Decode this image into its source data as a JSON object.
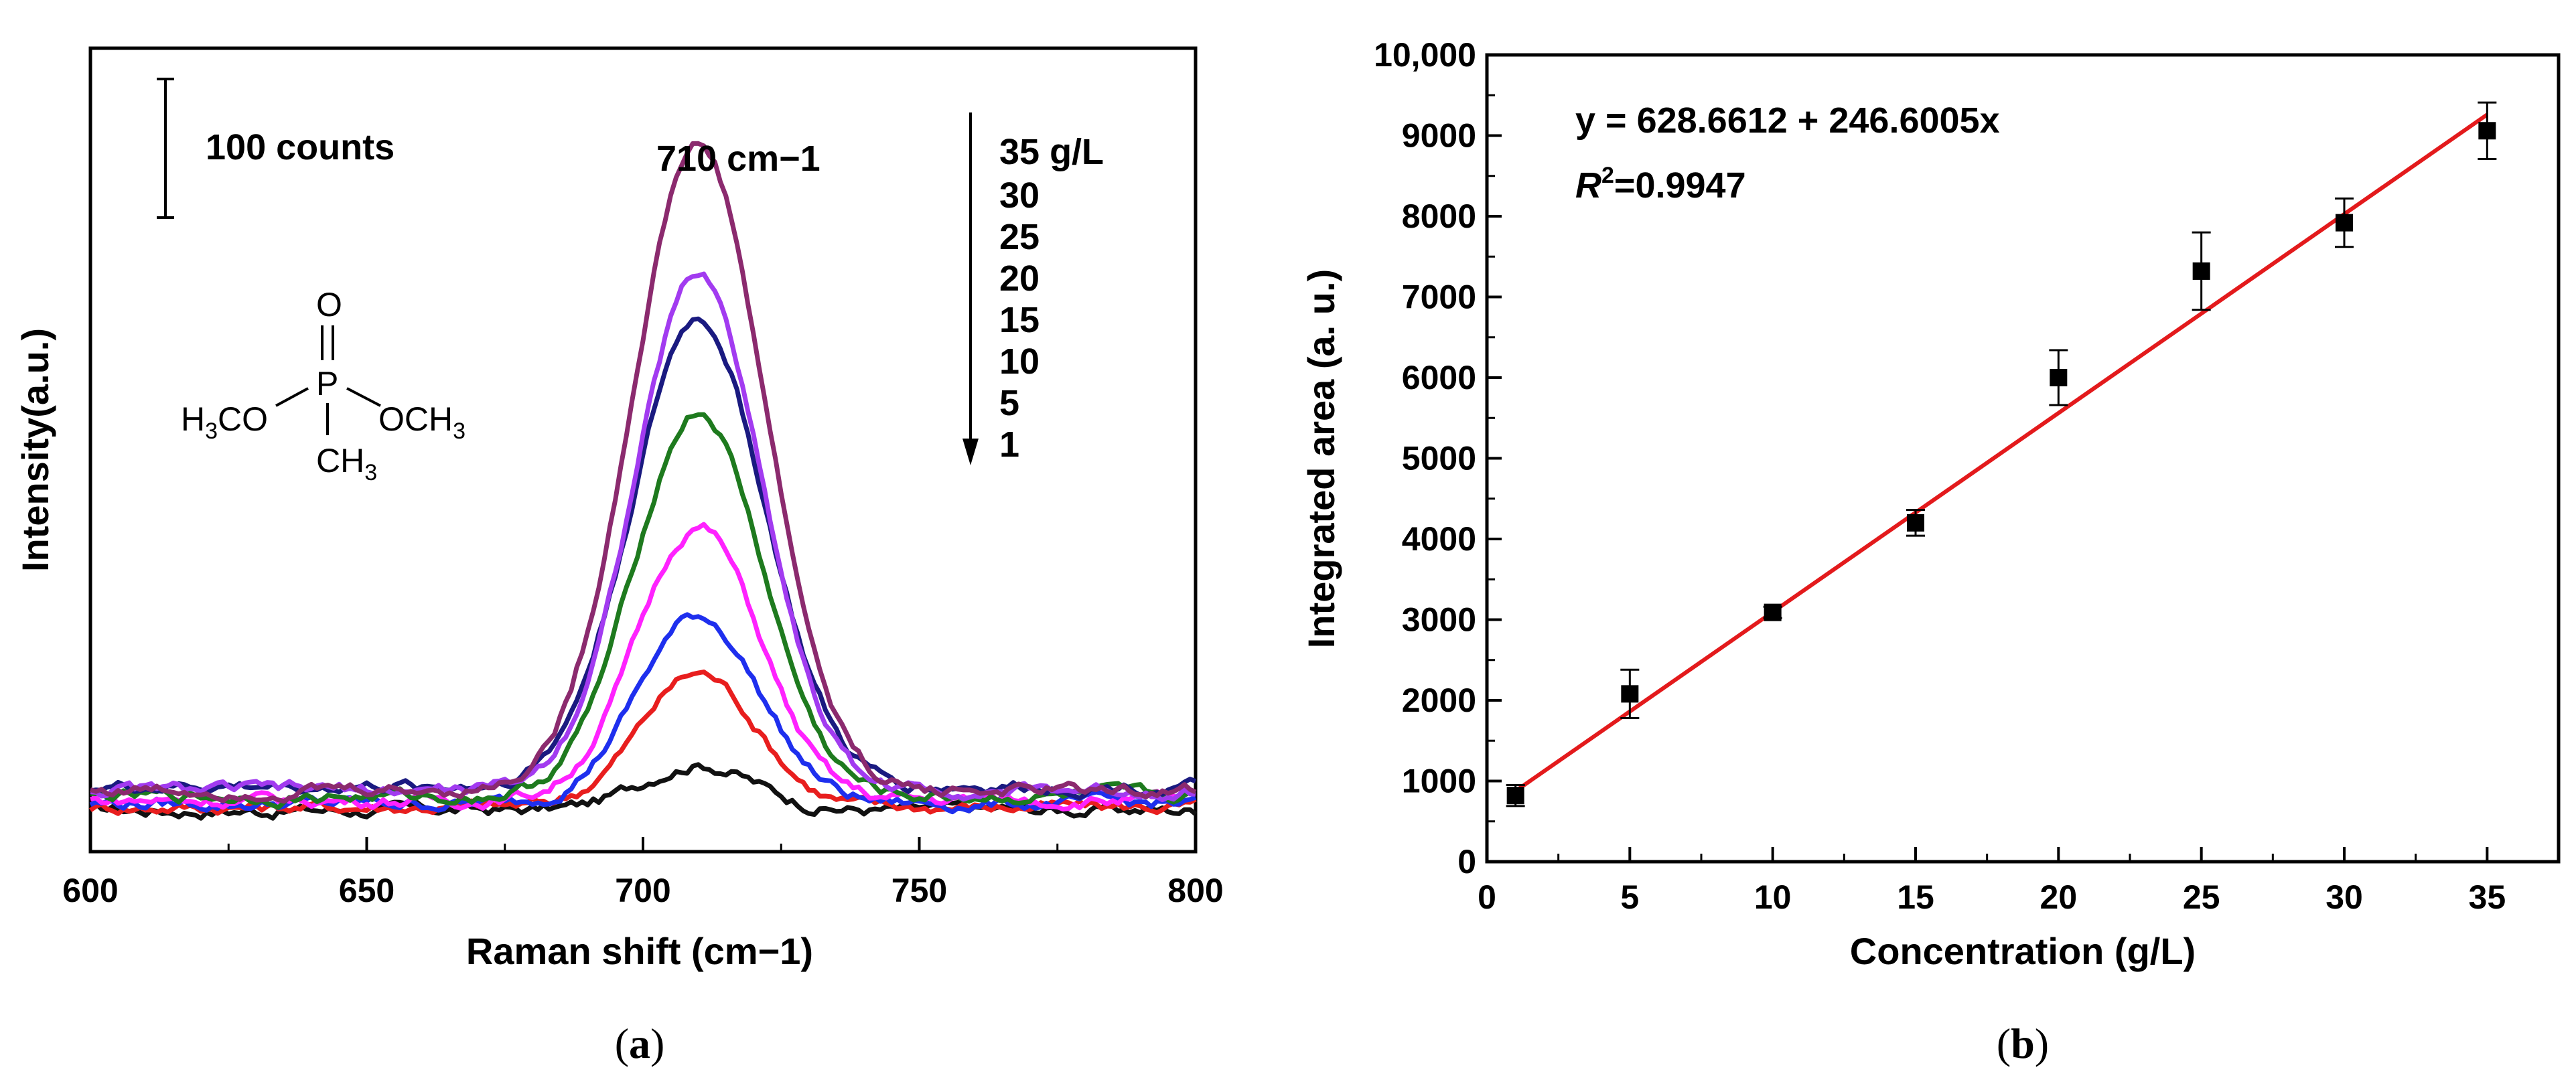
{
  "chart_data": [
    {
      "type": "line",
      "panel": "a",
      "caption": "(a)",
      "xlabel": "Raman shift (cm−1)",
      "ylabel": "Intensity(a.u.)",
      "xlim": [
        600,
        800
      ],
      "x_ticks": [
        "600",
        "650",
        "700",
        "750",
        "800"
      ],
      "peak_label": "710 cm−1",
      "scale_bar_label": "100 counts",
      "legend_title": "35 g/L",
      "legend_entries": [
        "30",
        "25",
        "20",
        "15",
        "10",
        "5",
        "1"
      ],
      "molecule": {
        "o_top": "O",
        "p": "P",
        "left_group": "H3CO",
        "right_group": "OCH3",
        "bottom_group": "CH3"
      },
      "series": [
        {
          "name": "35 g/L",
          "color": "#8B2A6E",
          "baseline": 50,
          "peak": 965,
          "width": 12
        },
        {
          "name": "30 g/L",
          "color": "#A23BF0",
          "baseline": 50,
          "peak": 770,
          "width": 11.5
        },
        {
          "name": "25 g/L",
          "color": "#1A1A80",
          "baseline": 55,
          "peak": 700,
          "width": 12
        },
        {
          "name": "20 g/L",
          "color": "#1E7A1E",
          "baseline": 40,
          "peak": 575,
          "width": 11.5
        },
        {
          "name": "15 g/L",
          "color": "#FF22FF",
          "baseline": 35,
          "peak": 410,
          "width": 11
        },
        {
          "name": "10 g/L",
          "color": "#1E2FEE",
          "baseline": 30,
          "peak": 280,
          "width": 11
        },
        {
          "name": "5 g/L",
          "color": "#E81E1E",
          "baseline": 25,
          "peak": 200,
          "width": 10.5
        },
        {
          "name": "1 g/L",
          "color": "#111111",
          "baseline": 20,
          "peak": 70,
          "width": 10
        }
      ]
    },
    {
      "type": "scatter",
      "panel": "b",
      "caption": "(b)",
      "xlabel": "Concentration (g/L)",
      "ylabel": "Integrated area (a. u.)",
      "xlim": [
        0,
        37.5
      ],
      "ylim": [
        0,
        10000
      ],
      "x_ticks": [
        "0",
        "5",
        "10",
        "15",
        "20",
        "25",
        "30",
        "35"
      ],
      "y_ticks": [
        "0",
        "1000",
        "2000",
        "3000",
        "4000",
        "5000",
        "6000",
        "7000",
        "8000",
        "9000",
        "10,000"
      ],
      "equation": "y = 628.6612 + 246.6005x",
      "r2_label": "R",
      "r2_sup": "2",
      "r2_value": "=0.9947",
      "fit": {
        "intercept": 628.6612,
        "slope": 246.6005,
        "color": "#E31A1C"
      },
      "points": [
        {
          "x": 1,
          "y": 820,
          "err": 130
        },
        {
          "x": 5,
          "y": 2080,
          "err": 300
        },
        {
          "x": 10,
          "y": 3090,
          "err": 70
        },
        {
          "x": 15,
          "y": 4200,
          "err": 160
        },
        {
          "x": 20,
          "y": 6000,
          "err": 340
        },
        {
          "x": 25,
          "y": 7320,
          "err": 480
        },
        {
          "x": 30,
          "y": 7920,
          "err": 300
        },
        {
          "x": 35,
          "y": 9060,
          "err": 350
        }
      ]
    }
  ]
}
